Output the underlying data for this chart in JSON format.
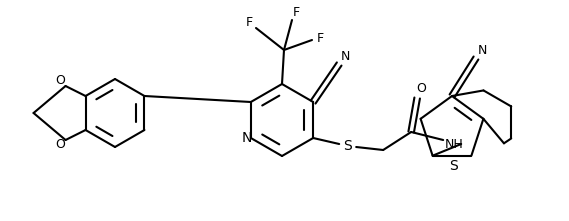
{
  "bg_color": "#ffffff",
  "lw": 1.5,
  "figsize": [
    5.69,
    2.21
  ],
  "dpi": 100,
  "xlim": [
    0,
    569
  ],
  "ylim": [
    0,
    221
  ]
}
